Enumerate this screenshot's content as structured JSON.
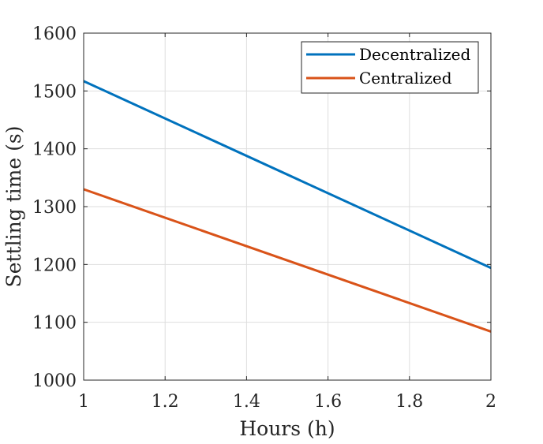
{
  "chart_data": {
    "type": "line",
    "xlabel": "Hours (h)",
    "ylabel": "Settling time (s)",
    "xlim": [
      1,
      2
    ],
    "ylim": [
      1000,
      1600
    ],
    "xticks": [
      1,
      1.2,
      1.4,
      1.6,
      1.8,
      2
    ],
    "xtick_labels": [
      "1",
      "1.2",
      "1.4",
      "1.6",
      "1.8",
      "2"
    ],
    "yticks": [
      1000,
      1100,
      1200,
      1300,
      1400,
      1500,
      1600
    ],
    "ytick_labels": [
      "1000",
      "1100",
      "1200",
      "1300",
      "1400",
      "1500",
      "1600"
    ],
    "grid": true,
    "legend": "top-right",
    "series": [
      {
        "name": "Decentralized",
        "color": "#0072bd",
        "x": [
          1,
          2
        ],
        "y": [
          1517,
          1194
        ]
      },
      {
        "name": "Centralized",
        "color": "#d95319",
        "x": [
          1,
          2
        ],
        "y": [
          1330,
          1084
        ]
      }
    ]
  }
}
